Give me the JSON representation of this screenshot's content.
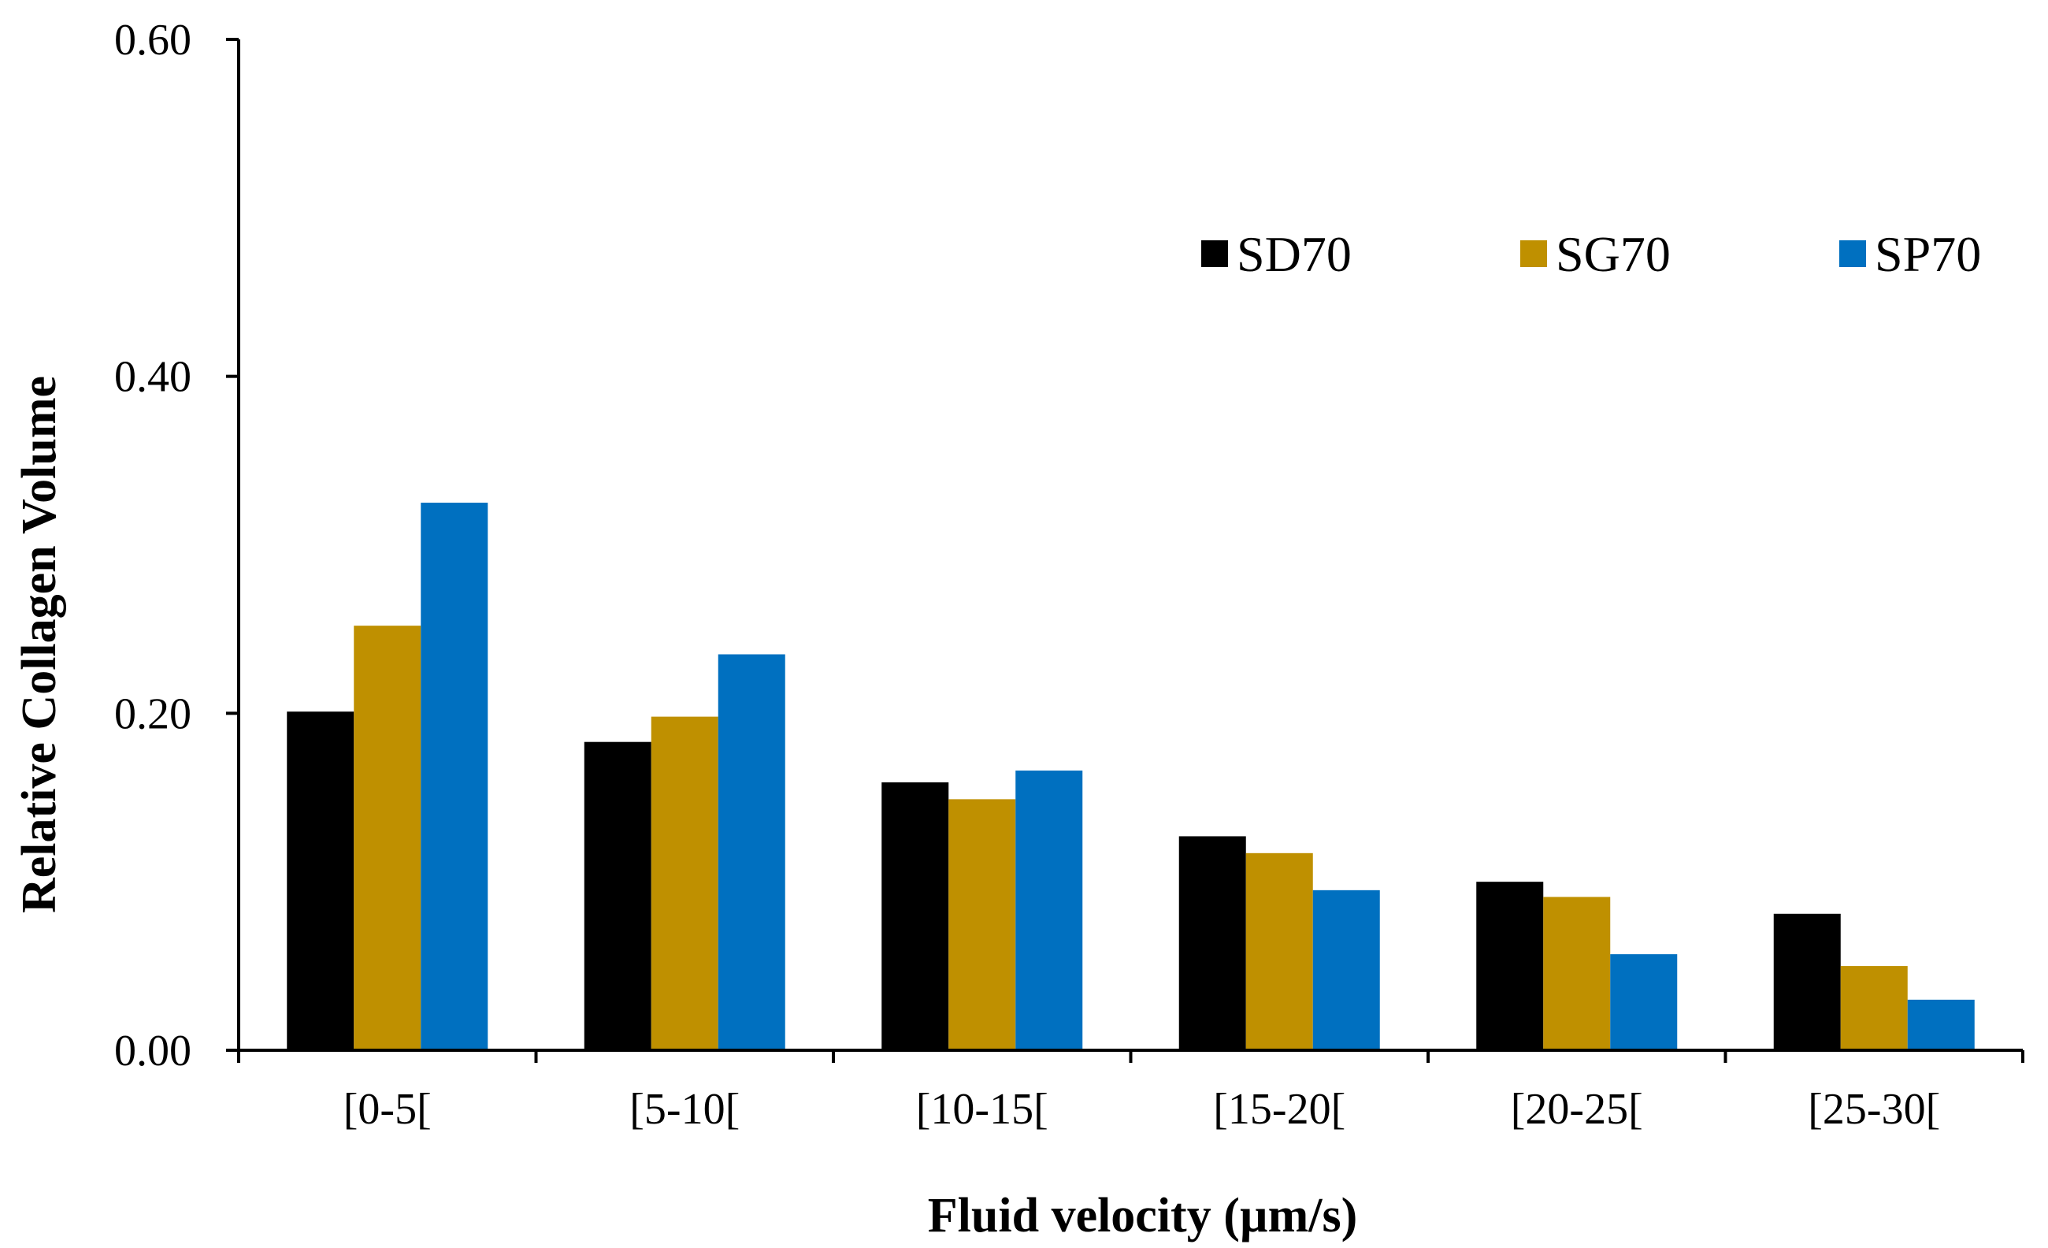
{
  "chart_data": {
    "type": "bar",
    "title": "",
    "xlabel": "Fluid velocity (µm/s)",
    "ylabel": "Relative Collagen Volume",
    "ylim": [
      0,
      0.6
    ],
    "yticks": [
      "0.00",
      "0.20",
      "0.40",
      "0.60"
    ],
    "categories": [
      "[0-5[",
      "[5-10[",
      "[10-15[",
      "[15-20[",
      "[20-25[",
      "[25-30["
    ],
    "series": [
      {
        "name": "SD70",
        "color": "#000000",
        "values": [
          0.201,
          0.183,
          0.159,
          0.127,
          0.1,
          0.081
        ]
      },
      {
        "name": "SG70",
        "color": "#bf9000",
        "values": [
          0.252,
          0.198,
          0.149,
          0.117,
          0.091,
          0.05
        ]
      },
      {
        "name": "SP70",
        "color": "#0070c0",
        "values": [
          0.325,
          0.235,
          0.166,
          0.095,
          0.057,
          0.03
        ]
      }
    ],
    "legend_position": "top-right",
    "grid": false
  }
}
